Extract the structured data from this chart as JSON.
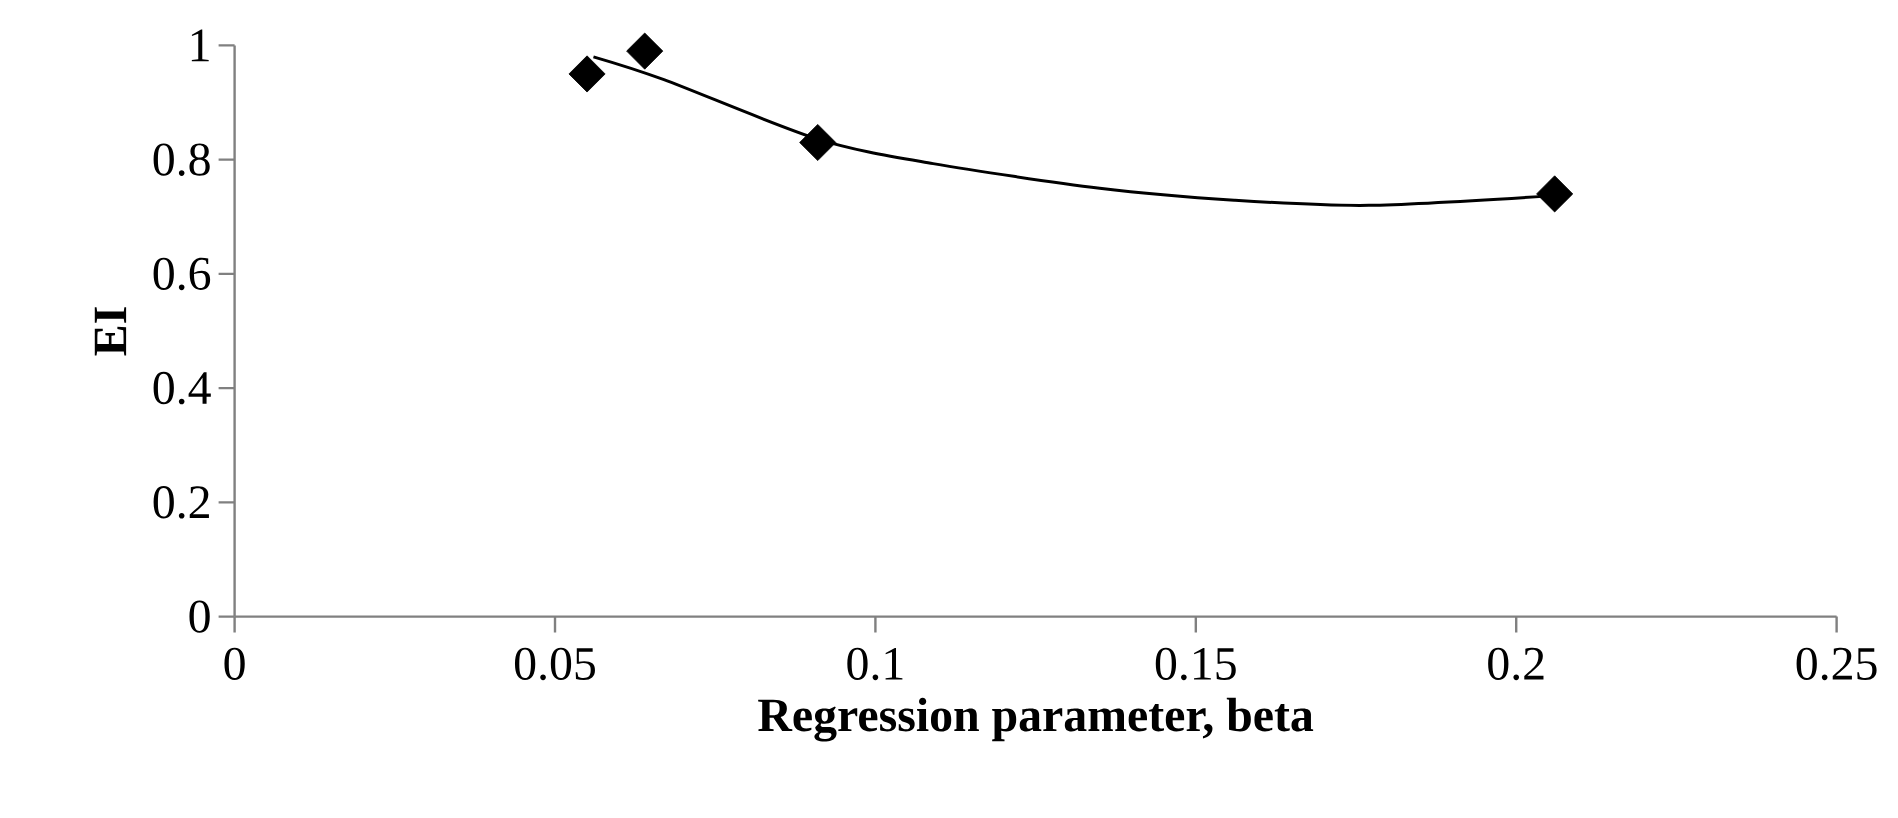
{
  "chart_data": {
    "type": "scatter",
    "xlabel": "Regression parameter, beta",
    "ylabel": "EI",
    "xlim": [
      0,
      0.25
    ],
    "xticks": [
      0,
      0.05,
      0.1,
      0.15,
      0.2,
      0.25
    ],
    "ylim": [
      0,
      1
    ],
    "yticks": [
      0,
      0.2,
      0.4,
      0.6,
      0.8,
      1
    ],
    "grid": false,
    "series": [
      {
        "color": "#000000",
        "marker": "diamond",
        "x": [
          0.055,
          0.064,
          0.091,
          0.206
        ],
        "values": [
          0.95,
          0.99,
          0.83,
          0.74
        ]
      },
      {
        "type": "line",
        "color": "#000000",
        "marker": "none",
        "line_style": "solid",
        "x": [
          0.056,
          0.067,
          0.091,
          0.109,
          0.135,
          0.156,
          0.177,
          0.206
        ],
        "values": [
          0.98,
          0.94,
          0.836,
          0.793,
          0.75,
          0.729,
          0.72,
          0.737
        ]
      }
    ]
  }
}
